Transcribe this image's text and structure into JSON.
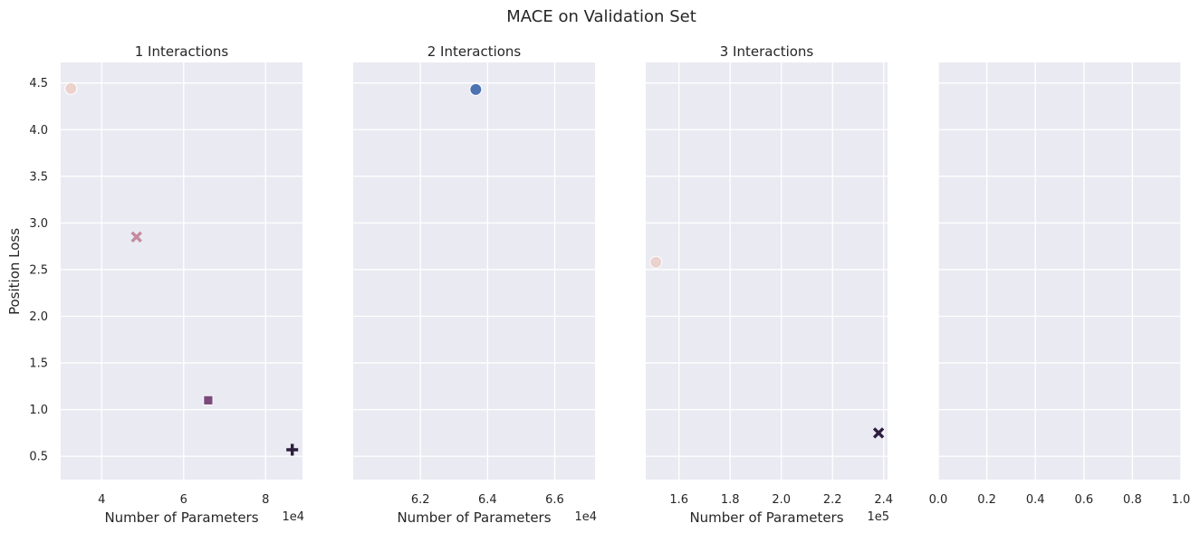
{
  "chart_data": {
    "type": "scatter",
    "title": "MACE on Validation Set",
    "ylabel": "Position Loss",
    "ylim": [
      0.25,
      4.72
    ],
    "yticks": [
      0.5,
      1.0,
      1.5,
      2.0,
      2.5,
      3.0,
      3.5,
      4.0,
      4.5
    ],
    "ytick_labels": [
      "0.5",
      "1.0",
      "1.5",
      "2.0",
      "2.5",
      "3.0",
      "3.5",
      "4.0",
      "4.5"
    ],
    "grid": true,
    "panels": [
      {
        "title": "1 Interactions",
        "xlabel": "Number of Parameters",
        "x_offset": "1e4",
        "xlim": [
          3.0,
          8.9
        ],
        "xticks": [
          4,
          6,
          8
        ],
        "xtick_labels": [
          "4",
          "6",
          "8"
        ],
        "points": [
          {
            "x": 3.25,
            "y": 4.44,
            "marker": "circle",
            "color": "#ebd2cc"
          },
          {
            "x": 4.85,
            "y": 2.85,
            "marker": "x",
            "color": "#c48a9e"
          },
          {
            "x": 6.6,
            "y": 1.1,
            "marker": "square",
            "color": "#7a4a7b"
          },
          {
            "x": 8.65,
            "y": 0.57,
            "marker": "plus",
            "color": "#2d1e3e"
          }
        ]
      },
      {
        "title": "2 Interactions",
        "xlabel": "Number of Parameters",
        "x_offset": "1e4",
        "xlim": [
          6.0,
          6.72
        ],
        "xticks": [
          6.2,
          6.4,
          6.6
        ],
        "xtick_labels": [
          "6.2",
          "6.4",
          "6.6"
        ],
        "points": [
          {
            "x": 6.365,
            "y": 4.43,
            "marker": "circle",
            "color": "#4c72b0"
          }
        ]
      },
      {
        "title": "3 Interactions",
        "xlabel": "Number of Parameters",
        "x_offset": "1e5",
        "xlim": [
          1.47,
          2.415
        ],
        "xticks": [
          1.6,
          1.8,
          2.0,
          2.2,
          2.4
        ],
        "xtick_labels": [
          "1.6",
          "1.8",
          "2.0",
          "2.2",
          "2.4"
        ],
        "points": [
          {
            "x": 1.51,
            "y": 2.58,
            "marker": "circle",
            "color": "#ebd2cc"
          },
          {
            "x": 2.38,
            "y": 0.75,
            "marker": "x",
            "color": "#2d1e3e"
          }
        ]
      },
      {
        "title": "",
        "xlabel": "",
        "x_offset": "",
        "xlim": [
          0.0,
          1.0
        ],
        "xticks": [
          0.0,
          0.2,
          0.4,
          0.6,
          0.8,
          1.0
        ],
        "xtick_labels": [
          "0.0",
          "0.2",
          "0.4",
          "0.6",
          "0.8",
          "1.0"
        ],
        "points": []
      }
    ]
  }
}
